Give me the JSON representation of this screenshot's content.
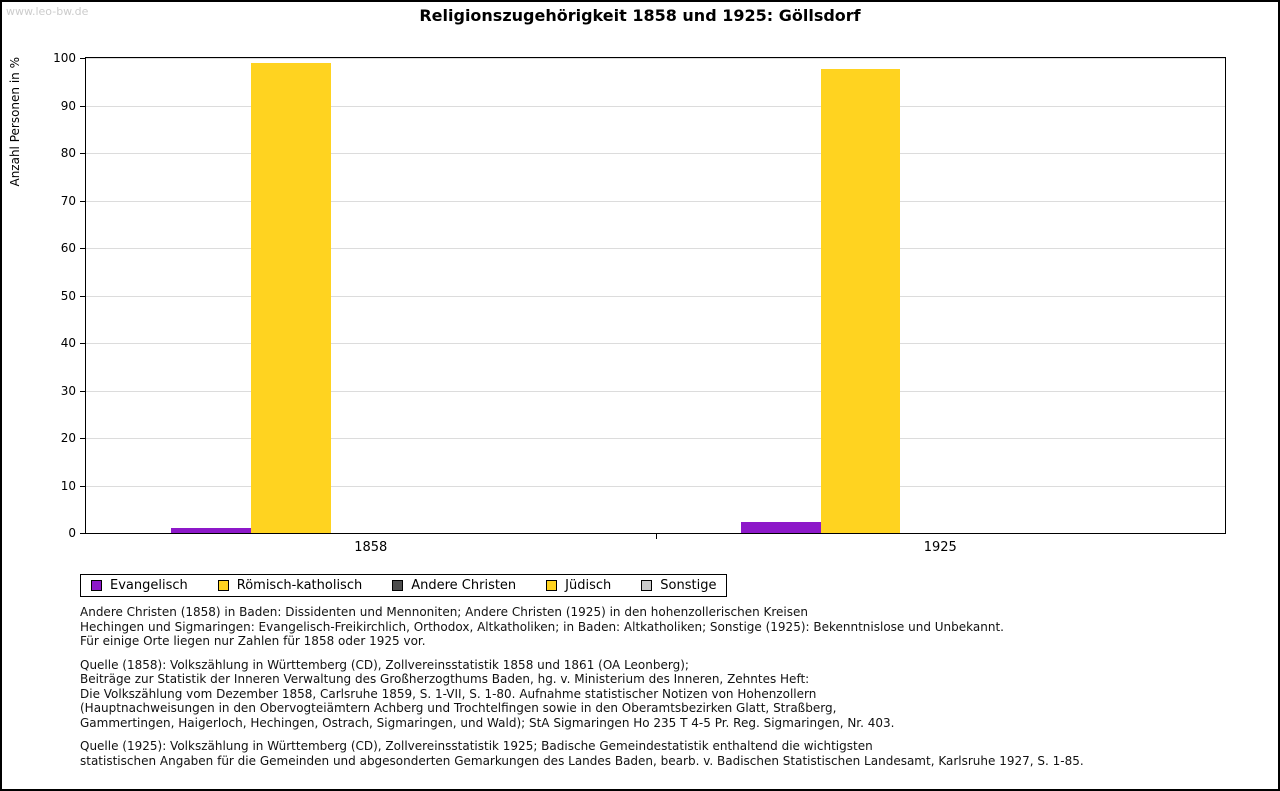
{
  "page": {
    "watermark": "www.leo-bw.de"
  },
  "chart_data": {
    "type": "bar",
    "title": "Religionszugehörigkeit 1858 und 1925: Göllsdorf",
    "ylabel": "Anzahl Personen in %",
    "xlabel": "",
    "ylim": [
      0,
      100
    ],
    "ytick_step": 10,
    "grid": true,
    "legend_position": "bottom",
    "categories": [
      "1858",
      "1925"
    ],
    "series": [
      {
        "name": "Evangelisch",
        "color": "#8d18c9",
        "values": [
          1.0,
          2.3
        ]
      },
      {
        "name": "Römisch-katholisch",
        "color": "#ffd320",
        "values": [
          99.0,
          97.6
        ]
      },
      {
        "name": "Andere Christen",
        "color": "#4d4d4d",
        "values": [
          0,
          0
        ]
      },
      {
        "name": "Jüdisch",
        "color": "#ffd320",
        "values": [
          0,
          0
        ]
      },
      {
        "name": "Sonstige",
        "color": "#c8c8c8",
        "values": [
          0,
          0
        ]
      }
    ]
  },
  "footnotes": {
    "paragraphs": [
      [
        "Andere Christen (1858) in Baden: Dissidenten und Mennoniten; Andere Christen (1925) in den hohenzollerischen Kreisen",
        "Hechingen und Sigmaringen: Evangelisch-Freikirchlich, Orthodox, Altkatholiken; in Baden: Altkatholiken; Sonstige (1925): Bekenntnislose und Unbekannt.",
        "Für einige Orte liegen nur Zahlen für 1858 oder 1925 vor."
      ],
      [
        "Quelle (1858): Volkszählung in Württemberg (CD), Zollvereinsstatistik 1858 und 1861 (OA Leonberg);",
        "Beiträge zur Statistik der Inneren Verwaltung des Großherzogthums Baden, hg. v. Ministerium des Inneren, Zehntes Heft:",
        "Die Volkszählung vom Dezember 1858, Carlsruhe 1859, S. 1-VII, S. 1-80. Aufnahme statistischer Notizen von Hohenzollern",
        "(Hauptnachweisungen in den Obervogteiämtern Achberg und Trochtelfingen sowie in den Oberamtsbezirken Glatt, Straßberg,",
        "Gammertingen, Haigerloch, Hechingen, Ostrach, Sigmaringen, und Wald); StA Sigmaringen Ho 235 T 4-5 Pr. Reg. Sigmaringen, Nr. 403."
      ],
      [
        "Quelle (1925): Volkszählung in Württemberg (CD), Zollvereinsstatistik 1925; Badische Gemeindestatistik enthaltend die wichtigsten",
        "statistischen Angaben für die Gemeinden und abgesonderten Gemarkungen des Landes Baden, bearb. v. Badischen Statistischen Landesamt, Karlsruhe 1927, S. 1-85."
      ]
    ]
  },
  "colors": {
    "grid": "#dcdcdc",
    "axis": "#000000",
    "watermark": "#cccccc"
  }
}
